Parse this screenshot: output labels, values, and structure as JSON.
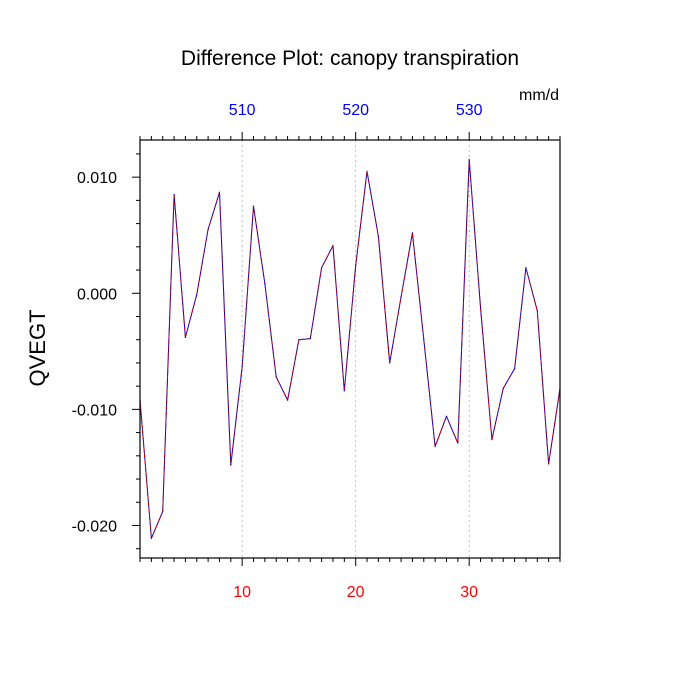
{
  "chart_data": {
    "type": "line",
    "title": "Difference Plot: canopy transpiration",
    "units": "mm/d",
    "ylabel": "QVEGT",
    "xlim": [
      1,
      38
    ],
    "ylim": [
      -0.0228,
      0.0132
    ],
    "grid": "dotted vertical lines at bottom and top ticks",
    "bottom_axis": {
      "ticks": [
        10,
        20,
        30
      ],
      "tick_labels": [
        "10",
        "20",
        "30"
      ],
      "color": "#ff0000"
    },
    "top_axis": {
      "ticks": [
        10,
        20,
        30
      ],
      "tick_labels": [
        "510",
        "520",
        "530"
      ],
      "color": "#0000ff"
    },
    "y_ticks": [
      -0.02,
      -0.01,
      0,
      0.01
    ],
    "y_tick_labels": [
      "-0.020",
      "-0.010",
      "0.000",
      "0.010"
    ],
    "series": [
      {
        "color": "#cc0000",
        "color2": "#0000cc",
        "style": "dashed",
        "x": [
          1,
          2,
          3,
          4,
          5,
          6,
          7,
          8,
          9,
          10,
          11,
          12,
          13,
          14,
          15,
          16,
          17,
          18,
          19,
          20,
          21,
          22,
          23,
          24,
          25,
          26,
          27,
          28,
          29,
          30,
          31,
          32,
          33,
          34,
          35,
          36,
          37,
          38
        ],
        "values": [
          -0.0092,
          -0.0211,
          -0.0188,
          0.0085,
          -0.0038,
          -0.0001,
          0.0055,
          0.0087,
          -0.0148,
          -0.0063,
          0.0075,
          0.0008,
          -0.0072,
          -0.0092,
          -0.004,
          -0.0039,
          0.0022,
          0.0041,
          -0.0084,
          0.0024,
          0.0105,
          0.0049,
          -0.006,
          -0.0003,
          0.0052,
          -0.004,
          -0.0132,
          -0.0106,
          -0.0129,
          0.0115,
          -0.0012,
          -0.0126,
          -0.0082,
          -0.0065,
          0.0022,
          -0.0015,
          -0.0147,
          -0.0082
        ]
      }
    ]
  }
}
